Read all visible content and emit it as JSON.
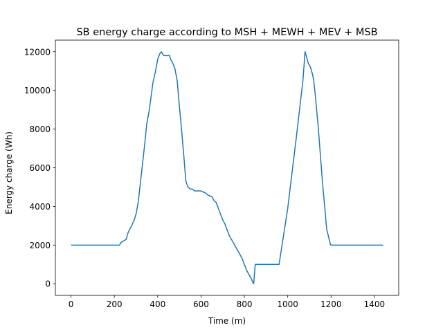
{
  "chart_data": {
    "type": "line",
    "title": "SB energy charge according to MSH + MEWH + MEV + MSB",
    "xlabel": "Time (m)",
    "ylabel": "Energy charge (Wh)",
    "xlim": [
      -72,
      1512
    ],
    "ylim": [
      -600,
      12600
    ],
    "xticks": [
      0,
      200,
      400,
      600,
      800,
      1000,
      1200,
      1400
    ],
    "yticks": [
      0,
      2000,
      4000,
      6000,
      8000,
      10000,
      12000
    ],
    "grid": false,
    "line_color": "#1f77b4",
    "series": [
      {
        "name": "",
        "x": [
          0,
          100,
          200,
          225,
          228,
          240,
          255,
          262,
          270,
          280,
          292,
          300,
          310,
          320,
          330,
          340,
          350,
          360,
          370,
          378,
          390,
          400,
          410,
          418,
          422,
          428,
          440,
          455,
          460,
          470,
          480,
          490,
          500,
          510,
          520,
          530,
          540,
          550,
          560,
          570,
          580,
          600,
          620,
          630,
          650,
          660,
          670,
          680,
          690,
          700,
          710,
          720,
          730,
          740,
          750,
          760,
          770,
          780,
          790,
          800,
          810,
          820,
          830,
          838,
          843,
          850,
          900,
          960,
          1000,
          1040,
          1070,
          1080,
          1085,
          1095,
          1105,
          1115,
          1120,
          1125,
          1140,
          1160,
          1180,
          1198,
          1300,
          1440
        ],
        "y": [
          2000,
          2000,
          2000,
          2000,
          2100,
          2200,
          2300,
          2600,
          2800,
          3000,
          3300,
          3600,
          4200,
          5200,
          6200,
          7200,
          8300,
          8900,
          9700,
          10400,
          11000,
          11600,
          11900,
          12000,
          11900,
          11800,
          11800,
          11800,
          11600,
          11400,
          11100,
          10500,
          9200,
          8000,
          6700,
          5300,
          5000,
          4900,
          4900,
          4800,
          4800,
          4800,
          4700,
          4600,
          4500,
          4300,
          4200,
          3900,
          3600,
          3300,
          3100,
          2800,
          2500,
          2300,
          2100,
          1900,
          1700,
          1500,
          1300,
          1000,
          700,
          500,
          300,
          100,
          0,
          1000,
          1000,
          1000,
          3900,
          7600,
          10500,
          12000,
          11800,
          11400,
          11200,
          10800,
          10500,
          10000,
          8200,
          5300,
          2800,
          2000,
          2000,
          2000
        ]
      }
    ]
  }
}
